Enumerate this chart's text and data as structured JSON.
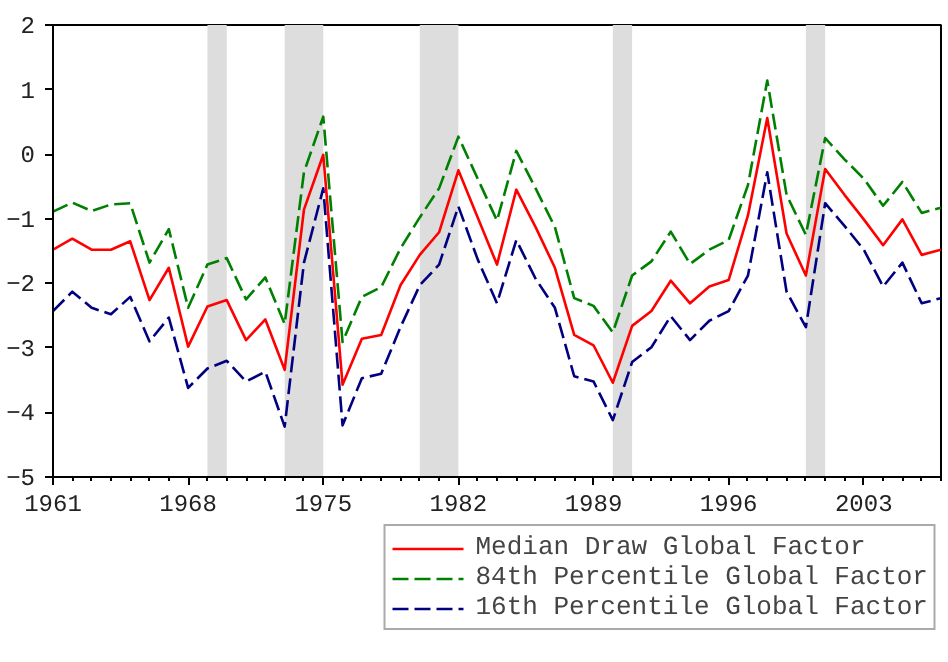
{
  "chart_data": {
    "type": "line",
    "x": [
      1961,
      1962,
      1963,
      1964,
      1965,
      1966,
      1967,
      1968,
      1969,
      1970,
      1971,
      1972,
      1973,
      1974,
      1975,
      1976,
      1977,
      1978,
      1979,
      1980,
      1981,
      1982,
      1983,
      1984,
      1985,
      1986,
      1987,
      1988,
      1989,
      1990,
      1991,
      1992,
      1993,
      1994,
      1995,
      1996,
      1997,
      1998,
      1999,
      2000,
      2001,
      2002,
      2003,
      2004,
      2005,
      2006,
      2007
    ],
    "series": [
      {
        "name": "Median Draw Global Factor",
        "color": "#ff0000",
        "line_style": "solid",
        "values": [
          -1.48,
          -1.31,
          -1.48,
          -1.48,
          -1.35,
          -2.26,
          -1.76,
          -2.98,
          -2.36,
          -2.26,
          -2.88,
          -2.56,
          -3.34,
          -0.86,
          -0.01,
          -3.57,
          -2.86,
          -2.8,
          -2.03,
          -1.56,
          -1.21,
          -0.25,
          -0.98,
          -1.71,
          -0.55,
          -1.13,
          -1.76,
          -2.8,
          -2.96,
          -3.54,
          -2.66,
          -2.43,
          -1.96,
          -2.31,
          -2.05,
          -1.95,
          -0.95,
          0.56,
          -1.23,
          -1.88,
          -0.23,
          -0.63,
          -1.01,
          -1.41,
          -1.01,
          -1.56,
          -1.48
        ]
      },
      {
        "name": "84th Percentile Global Factor",
        "color": "#008000",
        "line_style": "dashed",
        "values": [
          -0.89,
          -0.75,
          -0.88,
          -0.78,
          -0.76,
          -1.68,
          -1.16,
          -2.38,
          -1.71,
          -1.61,
          -2.25,
          -1.91,
          -2.63,
          -0.28,
          0.58,
          -2.91,
          -2.21,
          -2.06,
          -1.46,
          -0.98,
          -0.53,
          0.27,
          -0.38,
          -1.03,
          0.05,
          -0.53,
          -1.13,
          -2.23,
          -2.35,
          -2.76,
          -1.88,
          -1.66,
          -1.2,
          -1.7,
          -1.48,
          -1.33,
          -0.48,
          1.14,
          -0.63,
          -1.25,
          0.25,
          -0.08,
          -0.38,
          -0.8,
          -0.43,
          -0.91,
          -0.83
        ]
      },
      {
        "name": "16th Percentile Global Factor",
        "color": "#000080",
        "line_style": "dashed",
        "values": [
          -2.43,
          -2.13,
          -2.38,
          -2.48,
          -2.21,
          -2.9,
          -2.53,
          -3.62,
          -3.32,
          -3.2,
          -3.52,
          -3.37,
          -4.22,
          -1.68,
          -0.53,
          -4.2,
          -3.47,
          -3.4,
          -2.68,
          -2.03,
          -1.71,
          -0.81,
          -1.63,
          -2.31,
          -1.33,
          -1.93,
          -2.38,
          -3.44,
          -3.52,
          -4.12,
          -3.22,
          -2.99,
          -2.51,
          -2.88,
          -2.58,
          -2.43,
          -1.88,
          -0.28,
          -2.13,
          -2.68,
          -0.76,
          -1.11,
          -1.48,
          -2.05,
          -1.68,
          -2.31,
          -2.23
        ]
      }
    ],
    "bands": [
      {
        "axis": "x",
        "from": 1969,
        "to": 1970,
        "color": "#dddddd"
      },
      {
        "axis": "x",
        "from": 1973,
        "to": 1975,
        "color": "#dddddd"
      },
      {
        "axis": "x",
        "from": 1980,
        "to": 1982,
        "color": "#dddddd"
      },
      {
        "axis": "x",
        "from": 1990,
        "to": 1991,
        "color": "#dddddd"
      },
      {
        "axis": "x",
        "from": 2000,
        "to": 2001,
        "color": "#dddddd"
      }
    ],
    "xlim": [
      1961,
      2007
    ],
    "xticks": [
      1961,
      1968,
      1975,
      1982,
      1989,
      1996,
      2003
    ],
    "ylim": [
      -5,
      2
    ],
    "yticks": [
      -5,
      -4,
      -3,
      -2,
      -1,
      0,
      1,
      2
    ],
    "grid": false,
    "legend": "bottom"
  }
}
